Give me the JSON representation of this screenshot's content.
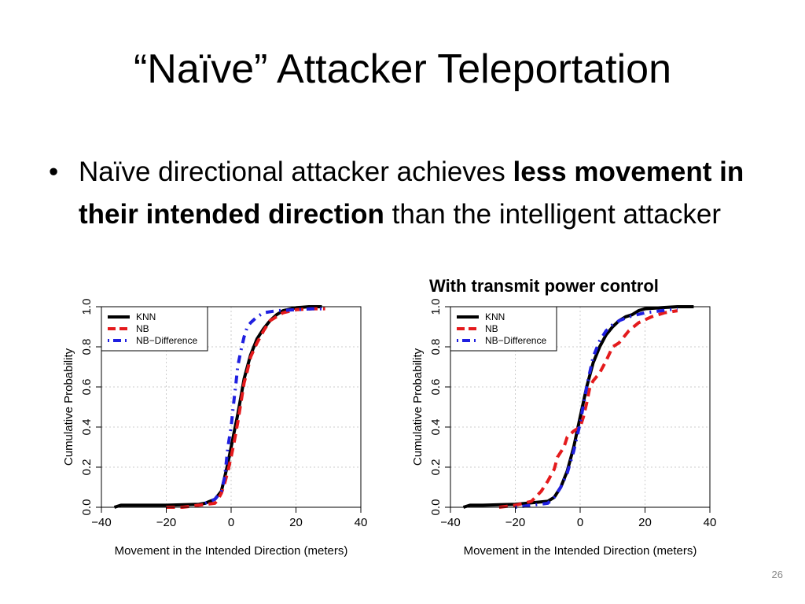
{
  "slide": {
    "title": "“Naïve” Attacker Teleportation",
    "bullet": {
      "symbol": "•",
      "part1": "Naïve directional attacker achieves ",
      "bold": "less movement in their intended direction",
      "part2": " than the intelligent attacker"
    },
    "subcaption": "With transmit power control",
    "slide_number": "26"
  },
  "chart_data": [
    {
      "type": "line",
      "xlabel": "Movement in the Intended Direction (meters)",
      "ylabel": "Cumulative Probability",
      "xlim": [
        -40,
        40
      ],
      "ylim": [
        0,
        1
      ],
      "xticks": [
        -40,
        -20,
        0,
        20,
        40
      ],
      "xtick_labels": [
        "−40",
        "−20",
        "0",
        "20",
        "40"
      ],
      "yticks": [
        0,
        0.2,
        0.4,
        0.6,
        0.8,
        1
      ],
      "ytick_labels": [
        "0.0",
        "0.2",
        "0.4",
        "0.6",
        "0.8",
        "1.0"
      ],
      "grid": true,
      "legend_position": "top-left",
      "series": [
        {
          "name": "KNN",
          "color": "#000000",
          "style": "solid",
          "x": [
            -36,
            -34,
            -30,
            -20,
            -10,
            -8,
            -5,
            -3,
            -2,
            -1,
            0,
            1,
            2,
            3,
            4,
            5,
            6,
            7,
            8,
            10,
            12,
            14,
            16,
            20,
            24,
            28
          ],
          "y": [
            0,
            0.01,
            0.01,
            0.01,
            0.015,
            0.02,
            0.04,
            0.08,
            0.15,
            0.22,
            0.3,
            0.38,
            0.46,
            0.55,
            0.64,
            0.7,
            0.76,
            0.8,
            0.84,
            0.89,
            0.93,
            0.96,
            0.98,
            0.995,
            1,
            1
          ]
        },
        {
          "name": "NB",
          "color": "#e41a1c",
          "style": "dashed",
          "x": [
            -20,
            -15,
            -10,
            -5,
            -4,
            -3,
            -2,
            -1,
            0,
            1,
            2,
            3,
            4,
            5,
            6,
            8,
            10,
            12,
            16,
            20,
            25,
            29
          ],
          "y": [
            0,
            0,
            0.01,
            0.02,
            0.04,
            0.07,
            0.12,
            0.18,
            0.25,
            0.33,
            0.42,
            0.52,
            0.62,
            0.68,
            0.75,
            0.82,
            0.88,
            0.93,
            0.97,
            0.985,
            0.99,
            0.99
          ]
        },
        {
          "name": "NB−Difference",
          "color": "#1f1fe0",
          "style": "dotdash",
          "x": [
            -8,
            -5,
            -3,
            -2,
            -1,
            0,
            0.5,
            1,
            1.5,
            2,
            3,
            4,
            5,
            6,
            8,
            10,
            14,
            20,
            25,
            29
          ],
          "y": [
            0.02,
            0.04,
            0.08,
            0.15,
            0.3,
            0.4,
            0.48,
            0.55,
            0.62,
            0.7,
            0.78,
            0.85,
            0.9,
            0.92,
            0.95,
            0.97,
            0.98,
            0.985,
            0.99,
            0.99
          ]
        }
      ]
    },
    {
      "type": "line",
      "xlabel": "Movement in the Intended Direction (meters)",
      "ylabel": "Cumulative Probability",
      "xlim": [
        -40,
        40
      ],
      "ylim": [
        0,
        1
      ],
      "xticks": [
        -40,
        -20,
        0,
        20,
        40
      ],
      "xtick_labels": [
        "−40",
        "−20",
        "0",
        "20",
        "40"
      ],
      "yticks": [
        0,
        0.2,
        0.4,
        0.6,
        0.8,
        1
      ],
      "ytick_labels": [
        "0.0",
        "0.2",
        "0.4",
        "0.6",
        "0.8",
        "1.0"
      ],
      "grid": true,
      "legend_position": "top-left",
      "series": [
        {
          "name": "KNN",
          "color": "#000000",
          "style": "solid",
          "x": [
            -36,
            -34,
            -30,
            -20,
            -10,
            -8,
            -6,
            -4,
            -2,
            0,
            2,
            4,
            6,
            8,
            10,
            12,
            14,
            16,
            18,
            20,
            25,
            30,
            35
          ],
          "y": [
            0,
            0.01,
            0.01,
            0.015,
            0.03,
            0.05,
            0.1,
            0.18,
            0.3,
            0.45,
            0.6,
            0.72,
            0.8,
            0.86,
            0.9,
            0.93,
            0.95,
            0.96,
            0.98,
            0.99,
            0.995,
            1,
            1
          ]
        },
        {
          "name": "NB",
          "color": "#e41a1c",
          "style": "dashed",
          "x": [
            -25,
            -20,
            -15,
            -12,
            -10,
            -8,
            -7,
            -5,
            -4,
            -2,
            0,
            1,
            2,
            3,
            4,
            6,
            8,
            10,
            12,
            15,
            18,
            22,
            26,
            30
          ],
          "y": [
            0,
            0.01,
            0.03,
            0.08,
            0.13,
            0.19,
            0.25,
            0.3,
            0.35,
            0.38,
            0.4,
            0.45,
            0.52,
            0.6,
            0.63,
            0.67,
            0.73,
            0.8,
            0.82,
            0.88,
            0.92,
            0.95,
            0.97,
            0.98
          ]
        },
        {
          "name": "NB−Difference",
          "color": "#1f1fe0",
          "style": "dotdash",
          "x": [
            -20,
            -10,
            -8,
            -6,
            -4,
            -2,
            0,
            2,
            4,
            6,
            8,
            10,
            12,
            15,
            20,
            25,
            30
          ],
          "y": [
            0,
            0.02,
            0.05,
            0.1,
            0.17,
            0.28,
            0.42,
            0.6,
            0.75,
            0.83,
            0.88,
            0.91,
            0.93,
            0.95,
            0.97,
            0.98,
            0.99
          ]
        }
      ]
    }
  ]
}
